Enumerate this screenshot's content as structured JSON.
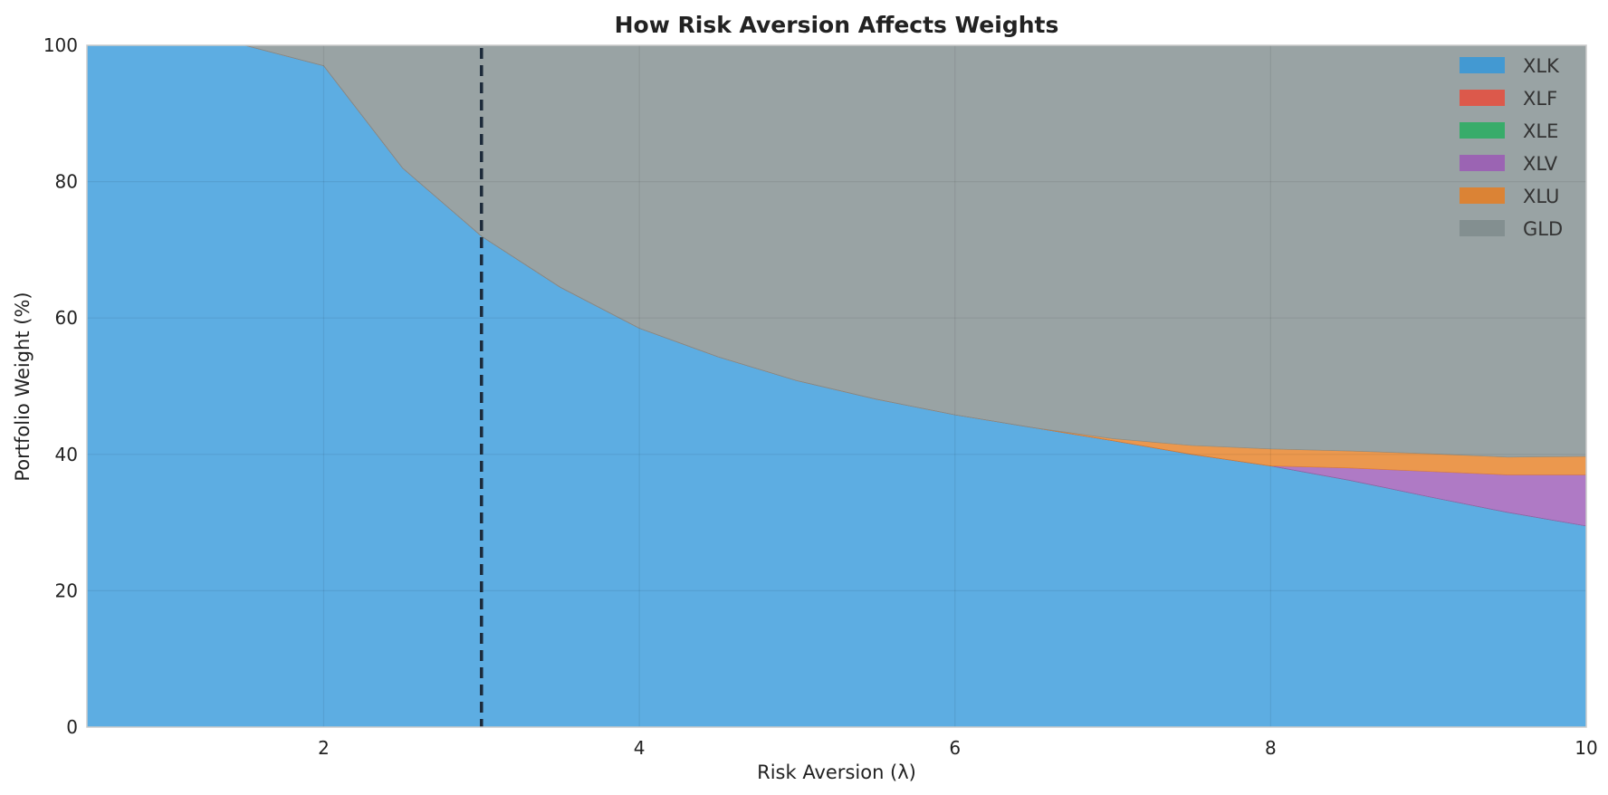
{
  "chart_data": {
    "type": "area",
    "stacked": true,
    "title": "How Risk Aversion Affects Weights",
    "xlabel": "Risk Aversion (λ)",
    "ylabel": "Portfolio Weight (%)",
    "xlim": [
      0.5,
      10
    ],
    "ylim": [
      0,
      100
    ],
    "xticks": [
      2,
      4,
      6,
      8,
      10
    ],
    "yticks": [
      0,
      20,
      40,
      60,
      80,
      100
    ],
    "grid": true,
    "legend_position": "top-right",
    "x": [
      0.5,
      1.0,
      1.5,
      2.0,
      2.5,
      3.0,
      3.5,
      4.0,
      4.5,
      5.0,
      5.5,
      6.0,
      6.5,
      7.0,
      7.5,
      8.0,
      8.5,
      9.0,
      9.5,
      10.0
    ],
    "series": [
      {
        "name": "XLK",
        "color": "#3498db",
        "values": [
          100,
          100,
          100,
          97,
          82,
          72,
          64.5,
          58.5,
          54.3,
          50.8,
          48.1,
          45.8,
          43.9,
          42.0,
          40.0,
          38.3,
          36.2,
          33.8,
          31.5,
          29.5
        ]
      },
      {
        "name": "XLF",
        "color": "#e74c3c",
        "values": [
          0,
          0,
          0,
          0,
          0,
          0,
          0,
          0,
          0,
          0,
          0,
          0,
          0,
          0,
          0,
          0,
          0,
          0,
          0,
          0
        ]
      },
      {
        "name": "XLE",
        "color": "#27ae60",
        "values": [
          0,
          0,
          0,
          0,
          0,
          0,
          0,
          0,
          0,
          0,
          0,
          0,
          0,
          0,
          0,
          0,
          0,
          0,
          0,
          0
        ]
      },
      {
        "name": "XLV",
        "color": "#9b59b6",
        "values": [
          0,
          0,
          0,
          0,
          0,
          0,
          0,
          0,
          0,
          0,
          0,
          0,
          0,
          0,
          0,
          0,
          1.8,
          3.7,
          5.5,
          7.5
        ]
      },
      {
        "name": "XLU",
        "color": "#e67e22",
        "values": [
          0,
          0,
          0,
          0,
          0,
          0,
          0,
          0,
          0,
          0,
          0,
          0,
          0,
          0.3,
          1.3,
          2.5,
          2.5,
          2.6,
          2.6,
          2.7
        ]
      },
      {
        "name": "GLD",
        "color": "#7f8c8d",
        "values": [
          0,
          0,
          0,
          3,
          18,
          28,
          35.5,
          41.5,
          45.7,
          49.2,
          51.9,
          54.2,
          56.1,
          57.7,
          58.7,
          59.2,
          59.5,
          59.9,
          60.4,
          60.3
        ]
      }
    ],
    "annotations": [
      {
        "type": "vline",
        "x": 3.0,
        "style": "dashed",
        "color": "#1c2a3a"
      }
    ]
  }
}
